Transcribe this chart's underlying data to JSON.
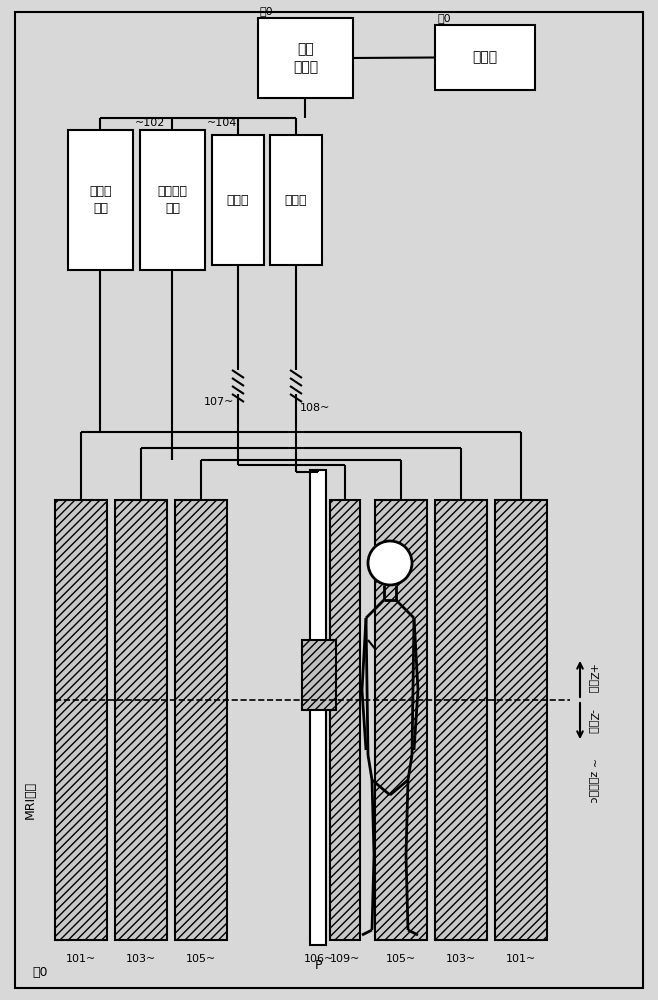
{
  "bg_color": "#d8d8d8",
  "box_facecolor": "#ffffff",
  "box_edgecolor": "#000000",
  "hatch_facecolor": "#c0c0c0",
  "line_color": "#000000",
  "box_120_text": "序列\n控制部",
  "box_120_label": "㰒0",
  "box_130_text": "计算机",
  "box_130_label": "㰓0",
  "box_102_text": "静磁场\n电源",
  "box_102_label": "~102",
  "box_104_text": "倾斜磁场\n电源",
  "box_104_label": "~104",
  "box_tx_text": "发送部",
  "box_rx_text": "接收部",
  "label_107": "107~",
  "label_108": "108~",
  "label_mri": "MRI装置",
  "label_100": "㰐0",
  "label_P": "P",
  "label_106": "106~",
  "label_109": "109~",
  "label_101": "101~",
  "label_103": "103~",
  "label_105": "105~",
  "arrow_plus_z": "+Z方向",
  "arrow_minus_z": "-Z方向",
  "label_origin": "~ z轴原点c"
}
